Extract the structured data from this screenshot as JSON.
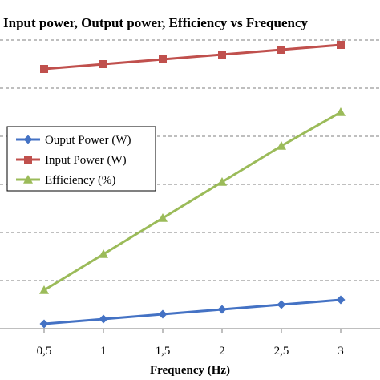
{
  "chart_data": {
    "type": "line",
    "title": "Input power, Output power, Efficiency vs Frequency",
    "xlabel": "Frequency (Hz)",
    "ylabel": "",
    "categories": [
      "0,5",
      "1",
      "1,5",
      "2",
      "2,5",
      "3"
    ],
    "ylim": [
      0,
      6.6
    ],
    "grid": true,
    "legend_position": "left",
    "series": [
      {
        "name": "Ouput Power (W)",
        "color": "#4472c4",
        "marker": "diamond",
        "values": [
          0.1,
          0.2,
          0.3,
          0.4,
          0.5,
          0.6
        ]
      },
      {
        "name": "Input Power (W)",
        "color": "#c0504d",
        "marker": "square",
        "values": [
          5.4,
          5.5,
          5.6,
          5.7,
          5.8,
          5.9
        ]
      },
      {
        "name": "Efficiency (%)",
        "color": "#9bbb59",
        "marker": "triangle",
        "values": [
          0.8,
          1.55,
          2.3,
          3.05,
          3.8,
          4.5
        ]
      }
    ]
  }
}
